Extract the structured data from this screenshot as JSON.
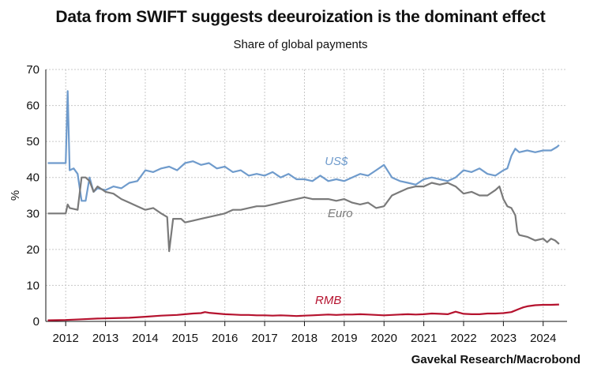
{
  "title": "Data from SWIFT suggests deeuroization is the dominant effect",
  "subtitle": "Share of global payments",
  "source": "Gavekal Research/Macrobond",
  "chart_data": {
    "type": "line",
    "title": "Data from SWIFT suggests deeuroization is the dominant effect",
    "subtitle": "Share of global payments",
    "xlabel": "",
    "ylabel": "%",
    "xlim": [
      2011.5,
      2024.6
    ],
    "ylim": [
      0,
      70
    ],
    "yticks": [
      0,
      10,
      20,
      30,
      40,
      50,
      60,
      70
    ],
    "ytick_labels": [
      "0",
      "10",
      "20",
      "30",
      "40",
      "50",
      "60",
      "70"
    ],
    "xtick_labels": [
      "2012",
      "2013",
      "2014",
      "2015",
      "2016",
      "2017",
      "2018",
      "2019",
      "2020",
      "2021",
      "2022",
      "2023",
      "2024"
    ],
    "xtick_values": [
      2012,
      2013,
      2014,
      2015,
      2016,
      2017,
      2018,
      2019,
      2020,
      2021,
      2022,
      2023,
      2024
    ],
    "grid": true,
    "series": [
      {
        "name": "US$",
        "color": "#6f9bcc",
        "label_at": [
          2018.8,
          43.5
        ],
        "points": [
          [
            2011.55,
            44
          ],
          [
            2011.9,
            44
          ],
          [
            2012.0,
            44
          ],
          [
            2012.05,
            64
          ],
          [
            2012.1,
            42
          ],
          [
            2012.2,
            42.5
          ],
          [
            2012.3,
            41
          ],
          [
            2012.4,
            33.5
          ],
          [
            2012.5,
            33.5
          ],
          [
            2012.6,
            40
          ],
          [
            2012.7,
            36
          ],
          [
            2012.8,
            37
          ],
          [
            2013.0,
            36.5
          ],
          [
            2013.2,
            37.5
          ],
          [
            2013.4,
            37
          ],
          [
            2013.6,
            38.5
          ],
          [
            2013.8,
            39
          ],
          [
            2014.0,
            42
          ],
          [
            2014.2,
            41.5
          ],
          [
            2014.4,
            42.5
          ],
          [
            2014.6,
            43
          ],
          [
            2014.8,
            42
          ],
          [
            2015.0,
            44
          ],
          [
            2015.2,
            44.5
          ],
          [
            2015.4,
            43.5
          ],
          [
            2015.6,
            44
          ],
          [
            2015.8,
            42.5
          ],
          [
            2016.0,
            43
          ],
          [
            2016.2,
            41.5
          ],
          [
            2016.4,
            42
          ],
          [
            2016.6,
            40.5
          ],
          [
            2016.8,
            41
          ],
          [
            2017.0,
            40.5
          ],
          [
            2017.2,
            41.5
          ],
          [
            2017.4,
            40
          ],
          [
            2017.6,
            41
          ],
          [
            2017.8,
            39.5
          ],
          [
            2018.0,
            39.5
          ],
          [
            2018.2,
            39
          ],
          [
            2018.4,
            40.5
          ],
          [
            2018.6,
            39
          ],
          [
            2018.8,
            39.5
          ],
          [
            2019.0,
            39
          ],
          [
            2019.2,
            40
          ],
          [
            2019.4,
            41
          ],
          [
            2019.6,
            40.5
          ],
          [
            2019.8,
            42
          ],
          [
            2020.0,
            43.5
          ],
          [
            2020.2,
            40
          ],
          [
            2020.4,
            39
          ],
          [
            2020.6,
            38.5
          ],
          [
            2020.8,
            38
          ],
          [
            2021.0,
            39.5
          ],
          [
            2021.2,
            40
          ],
          [
            2021.4,
            39.5
          ],
          [
            2021.6,
            39
          ],
          [
            2021.8,
            40
          ],
          [
            2022.0,
            42
          ],
          [
            2022.2,
            41.5
          ],
          [
            2022.4,
            42.5
          ],
          [
            2022.6,
            41
          ],
          [
            2022.8,
            40.5
          ],
          [
            2023.0,
            42
          ],
          [
            2023.1,
            42.5
          ],
          [
            2023.2,
            46
          ],
          [
            2023.3,
            48
          ],
          [
            2023.4,
            47
          ],
          [
            2023.6,
            47.5
          ],
          [
            2023.8,
            47
          ],
          [
            2024.0,
            47.5
          ],
          [
            2024.2,
            47.5
          ],
          [
            2024.35,
            48.5
          ],
          [
            2024.4,
            49
          ]
        ]
      },
      {
        "name": "Euro",
        "color": "#7a7a7a",
        "label_at": [
          2018.9,
          29
        ],
        "points": [
          [
            2011.55,
            30
          ],
          [
            2011.9,
            30
          ],
          [
            2012.0,
            30
          ],
          [
            2012.05,
            32.5
          ],
          [
            2012.1,
            31.5
          ],
          [
            2012.3,
            31
          ],
          [
            2012.4,
            40
          ],
          [
            2012.5,
            40
          ],
          [
            2012.6,
            39
          ],
          [
            2012.7,
            36
          ],
          [
            2012.8,
            37.5
          ],
          [
            2013.0,
            36
          ],
          [
            2013.2,
            35.5
          ],
          [
            2013.4,
            34
          ],
          [
            2013.6,
            33
          ],
          [
            2013.8,
            32
          ],
          [
            2014.0,
            31
          ],
          [
            2014.2,
            31.5
          ],
          [
            2014.4,
            30
          ],
          [
            2014.55,
            29
          ],
          [
            2014.6,
            19.5
          ],
          [
            2014.7,
            28.5
          ],
          [
            2014.9,
            28.5
          ],
          [
            2015.0,
            27.5
          ],
          [
            2015.2,
            28
          ],
          [
            2015.4,
            28.5
          ],
          [
            2015.6,
            29
          ],
          [
            2015.8,
            29.5
          ],
          [
            2016.0,
            30
          ],
          [
            2016.2,
            31
          ],
          [
            2016.4,
            31
          ],
          [
            2016.6,
            31.5
          ],
          [
            2016.8,
            32
          ],
          [
            2017.0,
            32
          ],
          [
            2017.2,
            32.5
          ],
          [
            2017.4,
            33
          ],
          [
            2017.6,
            33.5
          ],
          [
            2017.8,
            34
          ],
          [
            2018.0,
            34.5
          ],
          [
            2018.2,
            34
          ],
          [
            2018.4,
            34
          ],
          [
            2018.6,
            34
          ],
          [
            2018.8,
            33.5
          ],
          [
            2019.0,
            34
          ],
          [
            2019.2,
            33
          ],
          [
            2019.4,
            32.5
          ],
          [
            2019.6,
            33
          ],
          [
            2019.8,
            31.5
          ],
          [
            2020.0,
            32
          ],
          [
            2020.2,
            35
          ],
          [
            2020.4,
            36
          ],
          [
            2020.6,
            37
          ],
          [
            2020.8,
            37.5
          ],
          [
            2021.0,
            37.5
          ],
          [
            2021.2,
            38.5
          ],
          [
            2021.4,
            38
          ],
          [
            2021.6,
            38.5
          ],
          [
            2021.8,
            37.5
          ],
          [
            2022.0,
            35.5
          ],
          [
            2022.2,
            36
          ],
          [
            2022.4,
            35
          ],
          [
            2022.6,
            35
          ],
          [
            2022.8,
            36.5
          ],
          [
            2022.9,
            37.5
          ],
          [
            2023.0,
            34
          ],
          [
            2023.1,
            32
          ],
          [
            2023.2,
            31.5
          ],
          [
            2023.3,
            29.5
          ],
          [
            2023.35,
            25
          ],
          [
            2023.4,
            24
          ],
          [
            2023.6,
            23.5
          ],
          [
            2023.8,
            22.5
          ],
          [
            2024.0,
            23
          ],
          [
            2024.1,
            22
          ],
          [
            2024.2,
            23
          ],
          [
            2024.3,
            22.5
          ],
          [
            2024.4,
            21.5
          ]
        ]
      },
      {
        "name": "RMB",
        "color": "#b5122e",
        "label_at": [
          2018.6,
          4.8
        ],
        "points": [
          [
            2011.55,
            0.3
          ],
          [
            2012.0,
            0.4
          ],
          [
            2012.4,
            0.6
          ],
          [
            2012.8,
            0.8
          ],
          [
            2013.2,
            0.9
          ],
          [
            2013.6,
            1.0
          ],
          [
            2014.0,
            1.3
          ],
          [
            2014.4,
            1.6
          ],
          [
            2014.8,
            1.8
          ],
          [
            2015.0,
            2.0
          ],
          [
            2015.2,
            2.2
          ],
          [
            2015.4,
            2.3
          ],
          [
            2015.5,
            2.6
          ],
          [
            2015.6,
            2.4
          ],
          [
            2015.8,
            2.2
          ],
          [
            2016.0,
            2.0
          ],
          [
            2016.2,
            1.9
          ],
          [
            2016.4,
            1.8
          ],
          [
            2016.6,
            1.8
          ],
          [
            2016.8,
            1.7
          ],
          [
            2017.0,
            1.7
          ],
          [
            2017.2,
            1.6
          ],
          [
            2017.4,
            1.7
          ],
          [
            2017.6,
            1.6
          ],
          [
            2017.8,
            1.5
          ],
          [
            2018.0,
            1.6
          ],
          [
            2018.2,
            1.7
          ],
          [
            2018.4,
            1.8
          ],
          [
            2018.6,
            1.9
          ],
          [
            2018.8,
            1.8
          ],
          [
            2019.0,
            1.9
          ],
          [
            2019.2,
            1.9
          ],
          [
            2019.4,
            2.0
          ],
          [
            2019.6,
            1.9
          ],
          [
            2019.8,
            1.8
          ],
          [
            2020.0,
            1.7
          ],
          [
            2020.2,
            1.8
          ],
          [
            2020.4,
            1.9
          ],
          [
            2020.6,
            2.0
          ],
          [
            2020.8,
            1.9
          ],
          [
            2021.0,
            2.0
          ],
          [
            2021.2,
            2.2
          ],
          [
            2021.4,
            2.1
          ],
          [
            2021.6,
            2.0
          ],
          [
            2021.8,
            2.7
          ],
          [
            2022.0,
            2.1
          ],
          [
            2022.2,
            2.0
          ],
          [
            2022.4,
            2.0
          ],
          [
            2022.6,
            2.2
          ],
          [
            2022.8,
            2.2
          ],
          [
            2023.0,
            2.3
          ],
          [
            2023.2,
            2.6
          ],
          [
            2023.4,
            3.5
          ],
          [
            2023.5,
            3.9
          ],
          [
            2023.6,
            4.2
          ],
          [
            2023.8,
            4.5
          ],
          [
            2024.0,
            4.6
          ],
          [
            2024.2,
            4.6
          ],
          [
            2024.4,
            4.7
          ]
        ]
      }
    ]
  }
}
